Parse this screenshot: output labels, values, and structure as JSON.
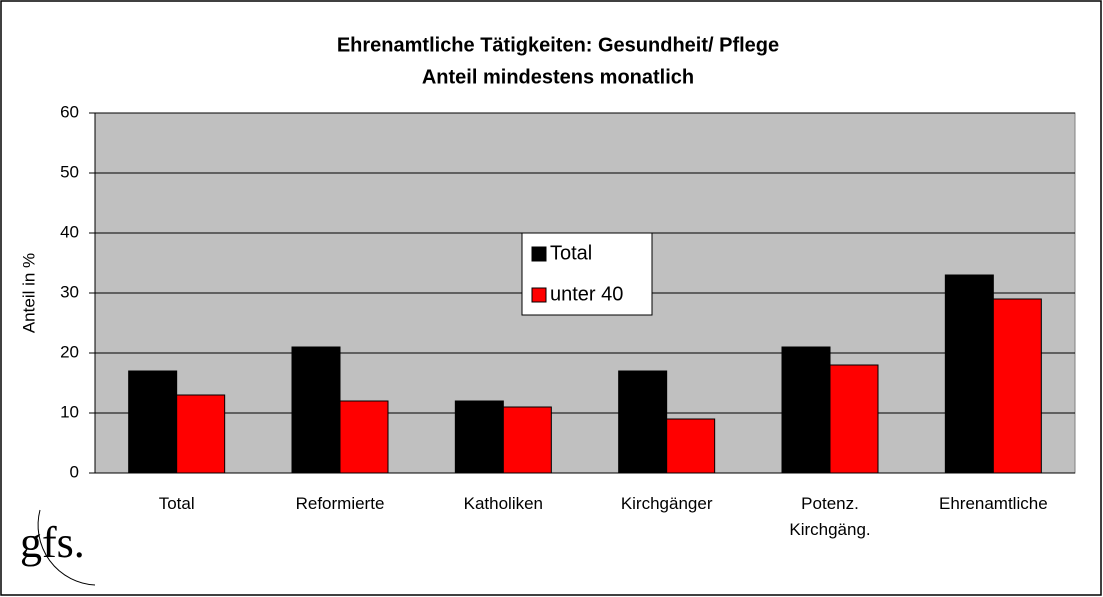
{
  "chart_data": {
    "type": "bar",
    "title": "Ehrenamtliche Tätigkeiten: Gesundheit/ Pflege",
    "subtitle": "Anteil mindestens monatlich",
    "y_label": "Anteil in %",
    "logo": "gfs.",
    "categories": [
      "Total",
      "Reformierte",
      "Katholiken",
      "Kirchgänger",
      "Potenz.\nKirchgäng.",
      "Ehrenamtliche"
    ],
    "series": [
      {
        "name": "Total",
        "color": "#000000",
        "values": [
          17,
          21,
          12,
          17,
          21,
          33
        ]
      },
      {
        "name": "unter 40",
        "color": "#ff0000",
        "values": [
          13,
          12,
          11,
          9,
          18,
          29
        ]
      }
    ],
    "ylim": [
      0,
      60
    ],
    "yticks": [
      0,
      10,
      20,
      30,
      40,
      50,
      60
    ],
    "grid": true,
    "legend": "center"
  }
}
